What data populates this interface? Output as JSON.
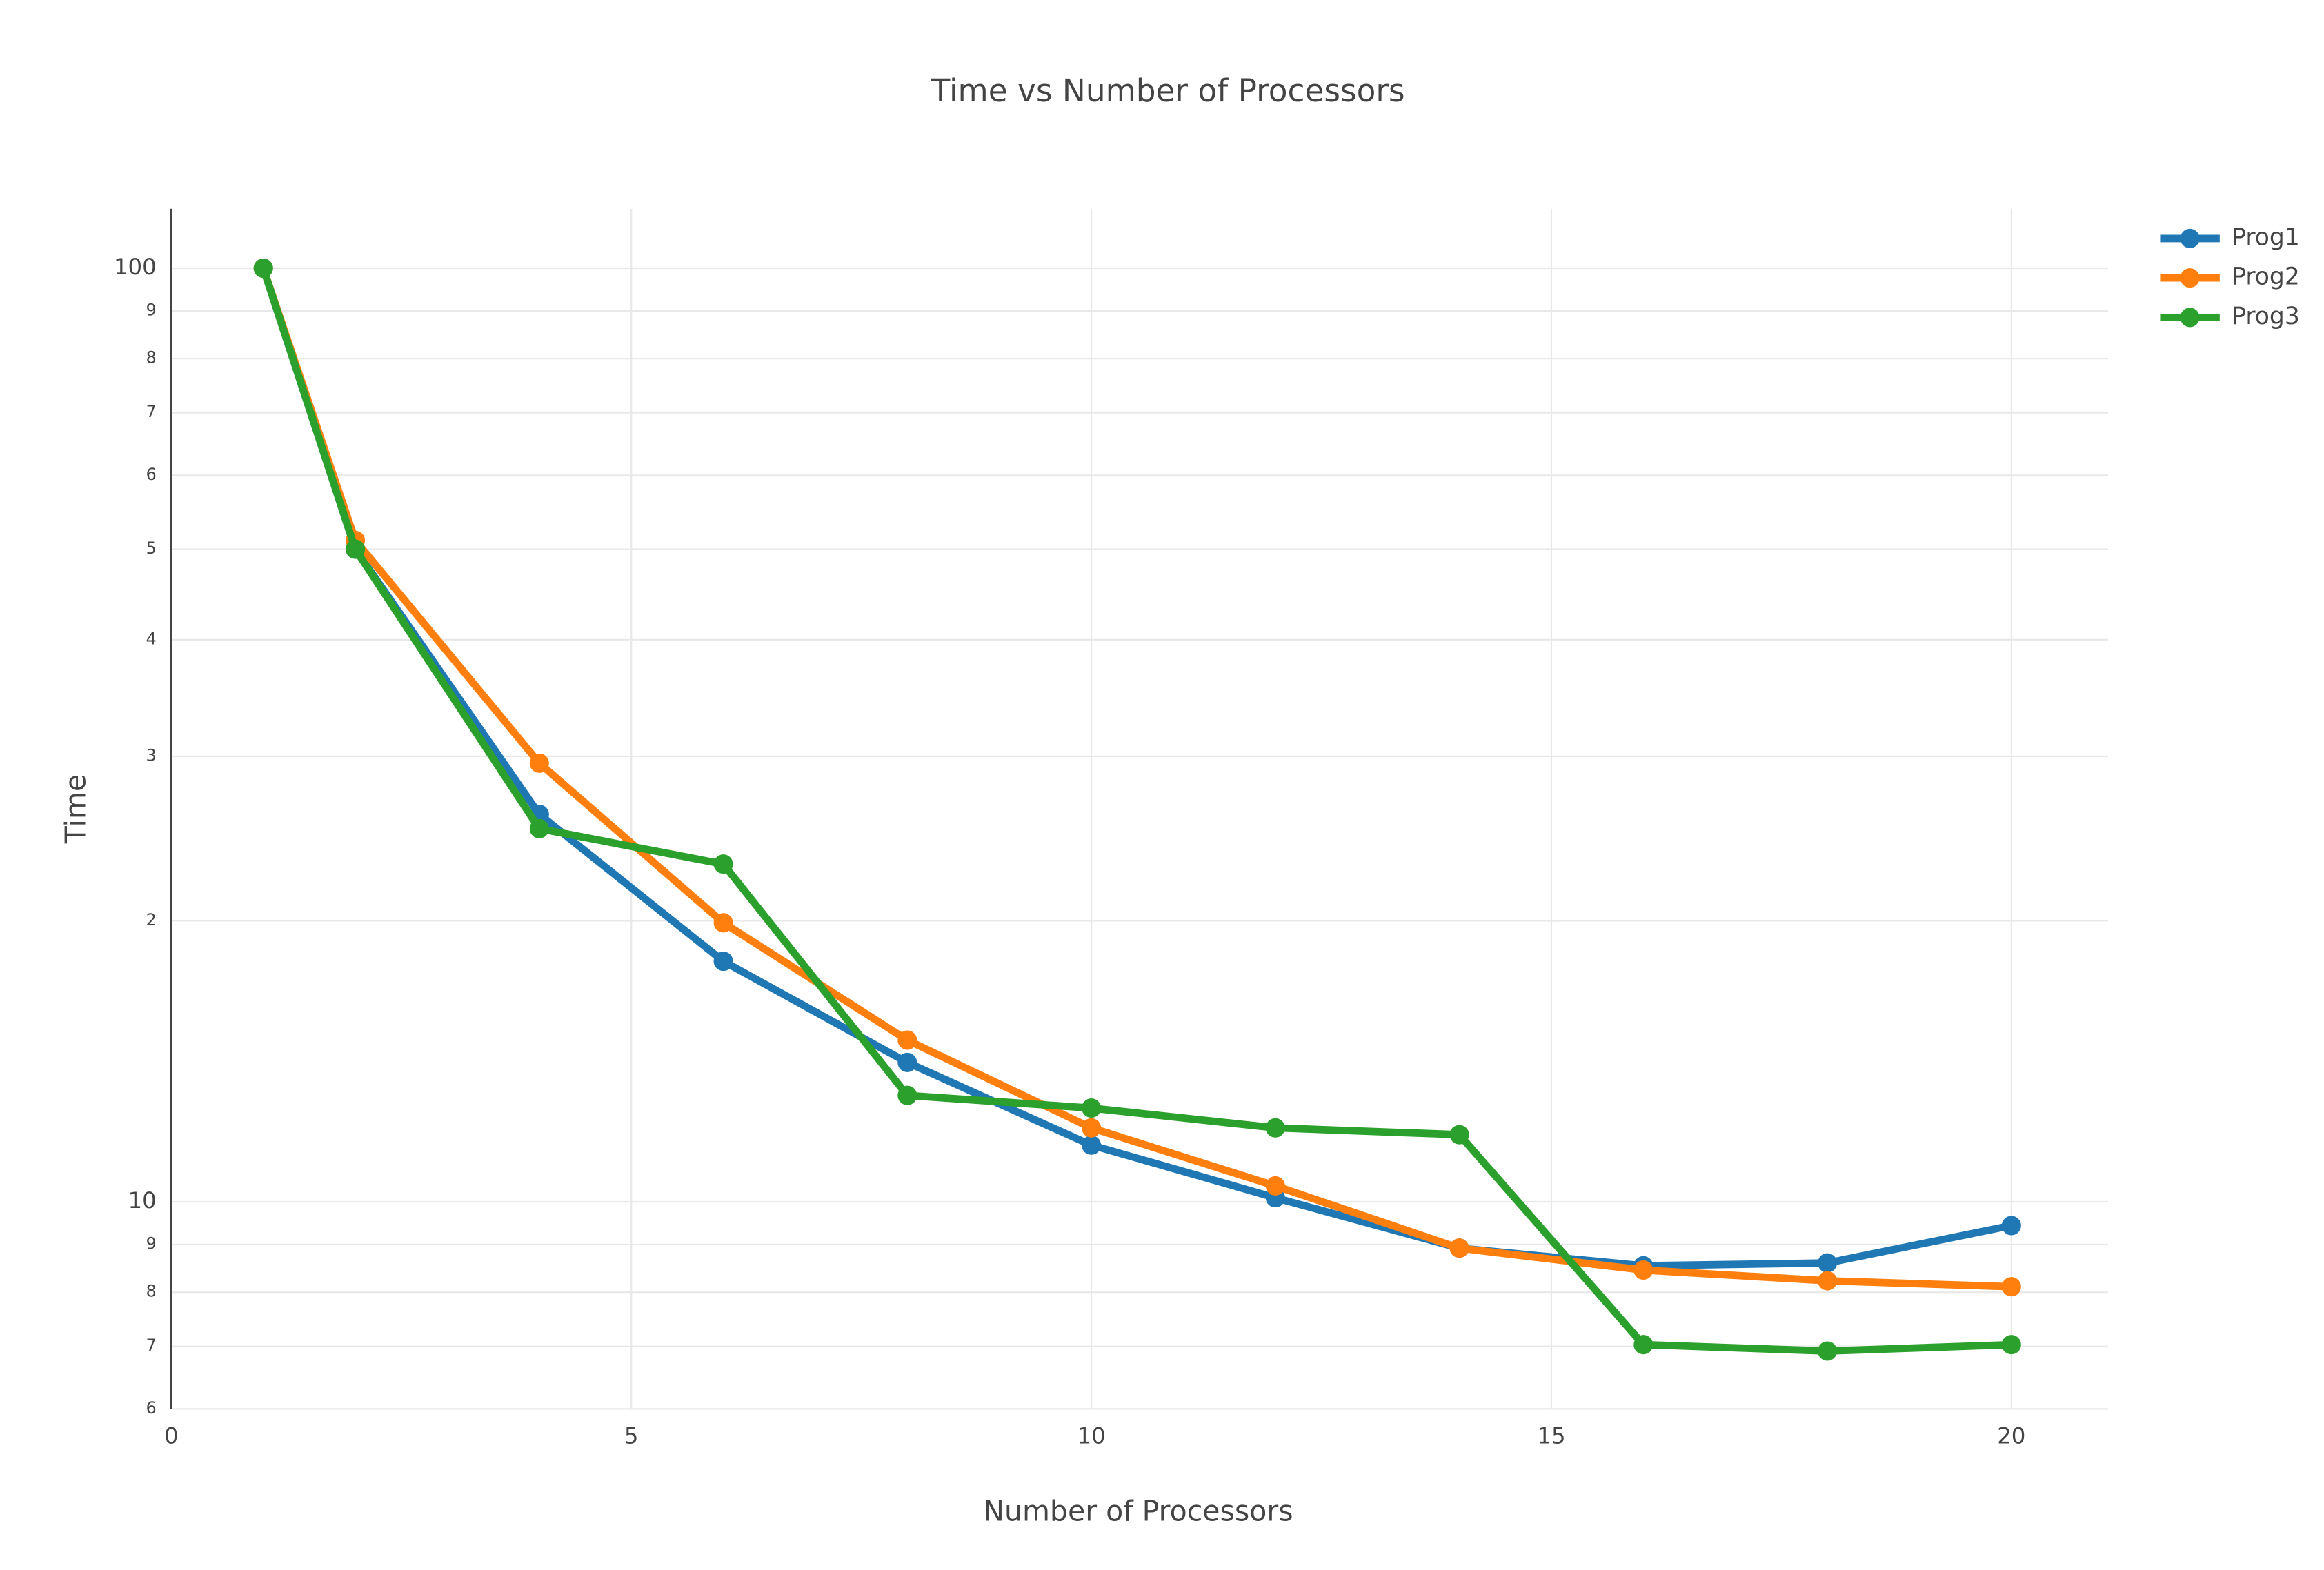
{
  "chart_data": {
    "type": "line",
    "title": "Time vs Number of Processors",
    "x_label": "Number of Processors",
    "y_label": "Time",
    "log_y": true,
    "grid": true,
    "legend_position": "top-right",
    "x": [
      1,
      2,
      4,
      6,
      8,
      10,
      12,
      14,
      16,
      18,
      20
    ],
    "series": [
      {
        "name": "Prog1",
        "color": "#1f77b4",
        "values": [
          100,
          50,
          26.0,
          18.1,
          14.1,
          11.5,
          10.1,
          8.92,
          8.54,
          8.6,
          9.43
        ]
      },
      {
        "name": "Prog2",
        "color": "#ff7f0e",
        "values": [
          100,
          51.1,
          29.5,
          19.9,
          14.9,
          12.0,
          10.4,
          8.92,
          8.45,
          8.23,
          8.11
        ]
      },
      {
        "name": "Prog3",
        "color": "#2ca02c",
        "values": [
          100,
          50,
          25.1,
          23.0,
          13.0,
          12.6,
          12.0,
          11.8,
          7.03,
          6.92,
          7.03
        ]
      }
    ],
    "xlim": [
      0,
      21.05
    ],
    "xticks": [
      0,
      5,
      10,
      15,
      20
    ],
    "ylim": [
      6,
      115.8
    ],
    "yticks": [
      6,
      7,
      8,
      9,
      10,
      {
        "value": 20,
        "label": "2"
      },
      {
        "value": 30,
        "label": "3"
      },
      {
        "value": 40,
        "label": "4"
      },
      {
        "value": 50,
        "label": "5"
      },
      {
        "value": 60,
        "label": "6"
      },
      {
        "value": 70,
        "label": "7"
      },
      {
        "value": 80,
        "label": "8"
      },
      {
        "value": 90,
        "label": "9"
      },
      100
    ]
  }
}
